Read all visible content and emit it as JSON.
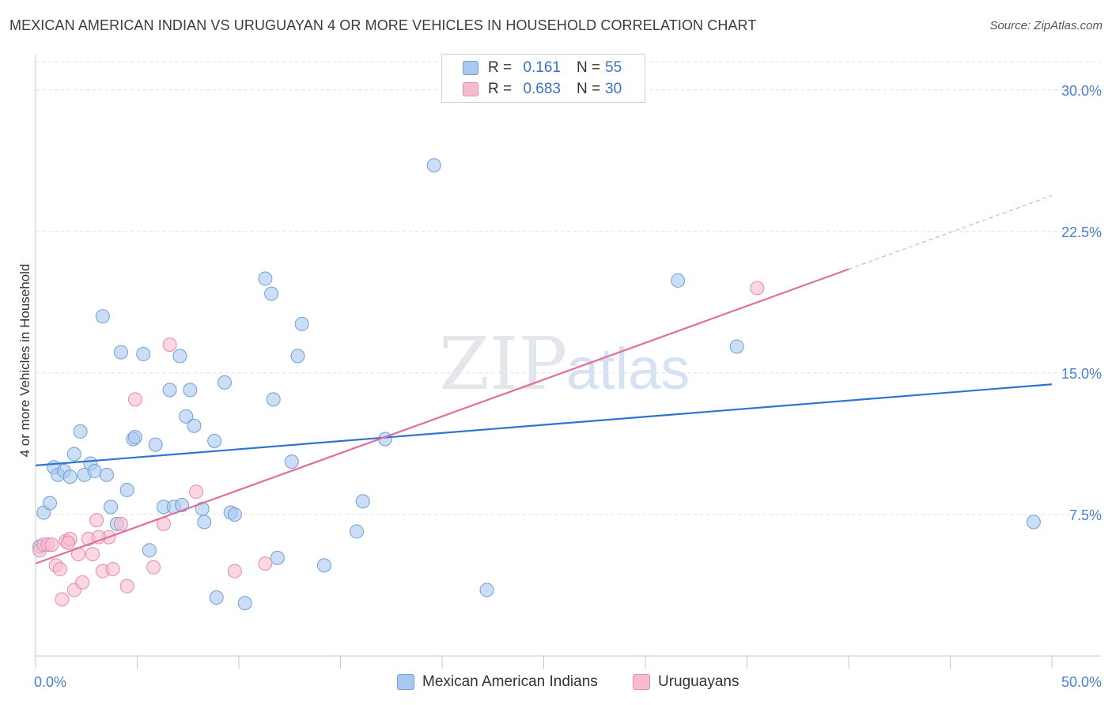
{
  "title": "MEXICAN AMERICAN INDIAN VS URUGUAYAN 4 OR MORE VEHICLES IN HOUSEHOLD CORRELATION CHART",
  "source": "Source: ZipAtlas.com",
  "watermark": {
    "zip": "ZIP",
    "atlas": "atlas"
  },
  "legend": {
    "r_label": "R =",
    "n_label": "N =",
    "series": [
      {
        "r": "0.161",
        "n": "55"
      },
      {
        "r": "0.683",
        "n": "30"
      }
    ]
  },
  "colors": {
    "blue_fill": "#a9c8ef",
    "blue_stroke": "#6f9fd8",
    "blue_line": "#2f74d0",
    "pink_fill": "#f6bccd",
    "pink_stroke": "#e98aa8",
    "pink_line": "#e0709a",
    "tick_label": "#4a7fcc"
  },
  "chart_data": {
    "type": "scatter",
    "title": "MEXICAN AMERICAN INDIAN VS URUGUAYAN 4 OR MORE VEHICLES IN HOUSEHOLD CORRELATION CHART",
    "xlabel": "",
    "ylabel": "4 or more Vehicles in Household",
    "xlim": [
      0,
      50
    ],
    "ylim": [
      0,
      31.5
    ],
    "y_ticks": [
      7.5,
      15.0,
      22.5,
      30.0
    ],
    "y_tick_labels": [
      "7.5%",
      "15.0%",
      "22.5%",
      "30.0%"
    ],
    "x_tick_labels": [
      "0.0%",
      "50.0%"
    ],
    "series": [
      {
        "name": "Mexican American Indians",
        "color": "blue",
        "R": 0.161,
        "N": 55,
        "trend": {
          "x": [
            0,
            50
          ],
          "y": [
            10.1,
            14.4
          ]
        },
        "points": [
          [
            0.2,
            5.8
          ],
          [
            0.4,
            7.6
          ],
          [
            0.7,
            8.1
          ],
          [
            0.9,
            10.0
          ],
          [
            1.1,
            9.6
          ],
          [
            1.4,
            9.8
          ],
          [
            1.7,
            9.5
          ],
          [
            1.9,
            10.7
          ],
          [
            2.2,
            11.9
          ],
          [
            2.4,
            9.6
          ],
          [
            2.7,
            10.2
          ],
          [
            2.9,
            9.8
          ],
          [
            3.3,
            18.0
          ],
          [
            3.5,
            9.6
          ],
          [
            3.7,
            7.9
          ],
          [
            4.0,
            7.0
          ],
          [
            4.2,
            16.1
          ],
          [
            4.5,
            8.8
          ],
          [
            4.8,
            11.5
          ],
          [
            4.9,
            11.6
          ],
          [
            5.3,
            16.0
          ],
          [
            5.6,
            5.6
          ],
          [
            5.9,
            11.2
          ],
          [
            6.3,
            7.9
          ],
          [
            6.6,
            14.1
          ],
          [
            6.8,
            7.9
          ],
          [
            7.1,
            15.9
          ],
          [
            7.2,
            8.0
          ],
          [
            7.4,
            12.7
          ],
          [
            7.6,
            14.1
          ],
          [
            7.8,
            12.2
          ],
          [
            8.2,
            7.8
          ],
          [
            8.3,
            7.1
          ],
          [
            8.8,
            11.4
          ],
          [
            8.9,
            3.1
          ],
          [
            9.3,
            14.5
          ],
          [
            9.6,
            7.6
          ],
          [
            9.8,
            7.5
          ],
          [
            10.3,
            2.8
          ],
          [
            11.3,
            20.0
          ],
          [
            11.6,
            19.2
          ],
          [
            11.7,
            13.6
          ],
          [
            11.9,
            5.2
          ],
          [
            12.6,
            10.3
          ],
          [
            12.9,
            15.9
          ],
          [
            13.1,
            17.6
          ],
          [
            14.2,
            4.8
          ],
          [
            15.8,
            6.6
          ],
          [
            16.1,
            8.2
          ],
          [
            17.2,
            11.5
          ],
          [
            19.6,
            26.0
          ],
          [
            22.2,
            3.5
          ],
          [
            31.6,
            19.9
          ],
          [
            34.5,
            16.4
          ],
          [
            49.1,
            7.1
          ]
        ]
      },
      {
        "name": "Uruguayans",
        "color": "pink",
        "R": 0.683,
        "N": 30,
        "trend": {
          "x": [
            0,
            40
          ],
          "y": [
            4.9,
            20.5
          ]
        },
        "trend_dashed": {
          "x": [
            40,
            50
          ],
          "y": [
            20.5,
            24.4
          ]
        },
        "points": [
          [
            0.2,
            5.6
          ],
          [
            0.4,
            5.9
          ],
          [
            0.6,
            5.9
          ],
          [
            0.8,
            5.9
          ],
          [
            1.0,
            4.8
          ],
          [
            1.2,
            4.6
          ],
          [
            1.3,
            3.0
          ],
          [
            1.5,
            6.1
          ],
          [
            1.7,
            6.2
          ],
          [
            1.9,
            3.5
          ],
          [
            2.1,
            5.4
          ],
          [
            2.3,
            3.9
          ],
          [
            2.6,
            6.2
          ],
          [
            2.8,
            5.4
          ],
          [
            3.0,
            7.2
          ],
          [
            3.3,
            4.5
          ],
          [
            3.6,
            6.3
          ],
          [
            3.8,
            4.6
          ],
          [
            4.2,
            7.0
          ],
          [
            4.5,
            3.7
          ],
          [
            4.9,
            13.6
          ],
          [
            5.8,
            4.7
          ],
          [
            6.3,
            7.0
          ],
          [
            6.6,
            16.5
          ],
          [
            7.9,
            8.7
          ],
          [
            9.8,
            4.5
          ],
          [
            11.3,
            4.9
          ],
          [
            35.5,
            19.5
          ],
          [
            3.1,
            6.3
          ],
          [
            1.6,
            6.0
          ]
        ]
      }
    ],
    "legend": [
      "Mexican American Indians",
      "Uruguayans"
    ]
  }
}
